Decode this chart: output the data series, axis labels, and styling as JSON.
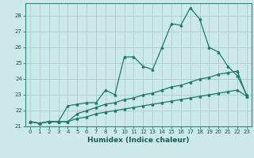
{
  "title": "",
  "xlabel": "Humidex (Indice chaleur)",
  "ylabel": "",
  "background_color": "#cce8e8",
  "grid_color": "#aacccc",
  "line_color": "#1a7a6a",
  "x_values": [
    0,
    1,
    2,
    3,
    4,
    5,
    6,
    7,
    8,
    9,
    10,
    11,
    12,
    13,
    14,
    15,
    16,
    17,
    18,
    19,
    20,
    21,
    22,
    23
  ],
  "line1_y": [
    21.3,
    21.2,
    21.3,
    21.3,
    22.3,
    22.4,
    22.5,
    22.5,
    23.3,
    23.0,
    25.4,
    25.4,
    24.8,
    24.6,
    26.0,
    27.5,
    27.4,
    28.5,
    27.8,
    26.0,
    25.7,
    24.8,
    24.2,
    23.0
  ],
  "line2_y": [
    21.3,
    21.2,
    21.3,
    21.3,
    21.3,
    21.8,
    22.0,
    22.2,
    22.4,
    22.5,
    22.7,
    22.8,
    23.0,
    23.1,
    23.3,
    23.5,
    23.6,
    23.8,
    24.0,
    24.1,
    24.3,
    24.4,
    24.5,
    22.9
  ],
  "line3_y": [
    21.3,
    21.2,
    21.3,
    21.3,
    21.3,
    21.5,
    21.6,
    21.8,
    21.9,
    22.0,
    22.1,
    22.2,
    22.3,
    22.4,
    22.5,
    22.6,
    22.7,
    22.8,
    22.9,
    23.0,
    23.1,
    23.2,
    23.3,
    22.9
  ],
  "ylim": [
    21,
    28.8
  ],
  "xlim": [
    -0.5,
    23.5
  ],
  "yticks": [
    21,
    22,
    23,
    24,
    25,
    26,
    27,
    28
  ],
  "xticks": [
    0,
    1,
    2,
    3,
    4,
    5,
    6,
    7,
    8,
    9,
    10,
    11,
    12,
    13,
    14,
    15,
    16,
    17,
    18,
    19,
    20,
    21,
    22,
    23
  ],
  "marker_size": 2.0,
  "line_width": 0.9,
  "tick_fontsize": 5.0,
  "xlabel_fontsize": 6.5
}
